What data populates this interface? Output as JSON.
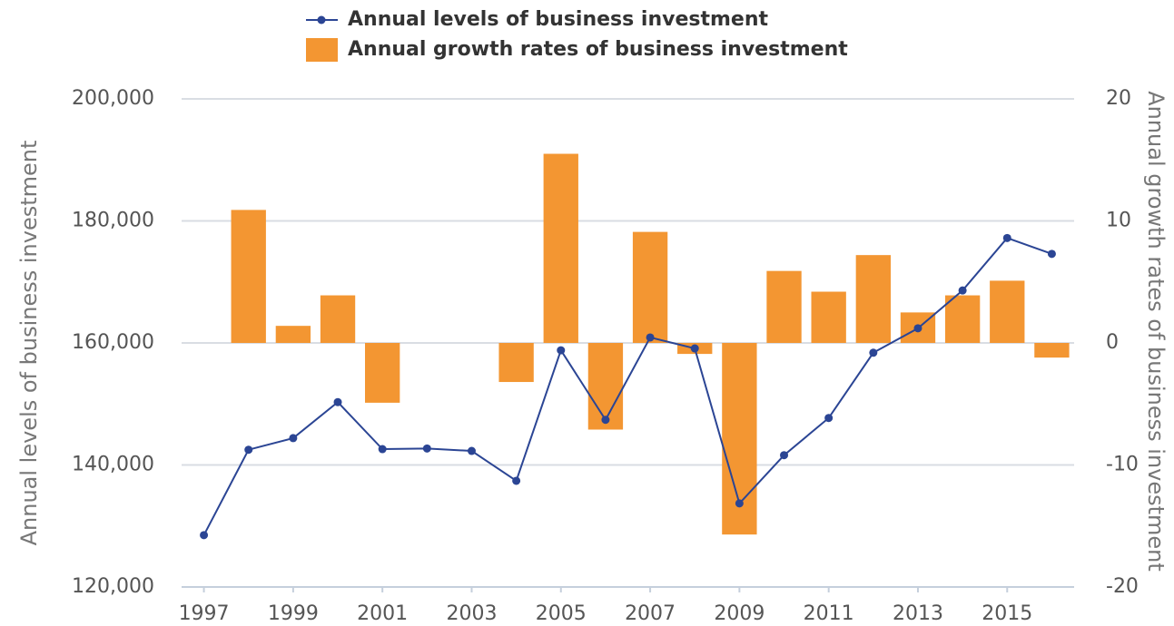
{
  "chart_data": {
    "type": "combo",
    "x": [
      1997,
      1998,
      1999,
      2000,
      2001,
      2002,
      2003,
      2004,
      2005,
      2006,
      2007,
      2008,
      2009,
      2010,
      2011,
      2012,
      2013,
      2014,
      2015,
      2016
    ],
    "xlim": [
      1996.5,
      2016.5
    ],
    "xticks": [
      1997,
      1999,
      2001,
      2003,
      2005,
      2007,
      2009,
      2011,
      2013,
      2015
    ],
    "ylabel": "Annual levels of business investment",
    "y2label": "Annual growth rates of business investment",
    "ylim": [
      120000,
      200000
    ],
    "yticks": [
      {
        "value": 120000,
        "label": "120,000"
      },
      {
        "value": 140000,
        "label": "140,000"
      },
      {
        "value": 160000,
        "label": "160,000"
      },
      {
        "value": 180000,
        "label": "180,000"
      },
      {
        "value": 200000,
        "label": "200,000"
      }
    ],
    "y2lim": [
      -20,
      20
    ],
    "y2ticks": [
      -20,
      -10,
      0,
      10,
      20
    ],
    "grid": true,
    "legend": "top",
    "series": [
      {
        "name": "Annual levels of business investment",
        "type": "line",
        "color": "#2b4594",
        "values": [
          128500,
          142500,
          144400,
          150300,
          142600,
          142700,
          142300,
          137400,
          158800,
          147400,
          160900,
          159100,
          133700,
          141600,
          147700,
          158400,
          162400,
          168600,
          177200,
          174600
        ]
      },
      {
        "name": "Annual growth rates of business investment",
        "type": "bar",
        "axis": "y2",
        "color": "#f39632",
        "values": [
          null,
          10.9,
          1.4,
          3.9,
          -4.9,
          0,
          0,
          -3.2,
          15.5,
          -7.1,
          9.1,
          -0.9,
          -15.7,
          5.9,
          4.2,
          7.2,
          2.5,
          3.9,
          5.1,
          -1.2
        ]
      }
    ]
  }
}
